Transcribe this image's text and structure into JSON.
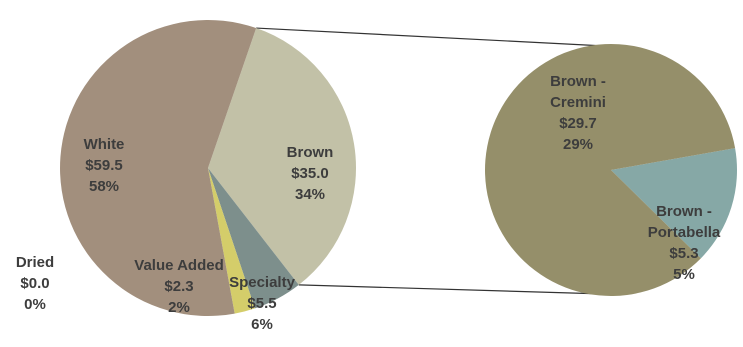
{
  "chart_data": [
    {
      "type": "pie",
      "title": "",
      "slices": [
        {
          "name": "White",
          "value_label": "$59.5",
          "percent_label": "58%",
          "value": 59.5,
          "color": "#a28f7d"
        },
        {
          "name": "Brown",
          "value_label": "$35.0",
          "percent_label": "34%",
          "value": 35.0,
          "color": "#c2c1a7"
        },
        {
          "name": "Specialty",
          "value_label": "$5.5",
          "percent_label": "6%",
          "value": 5.5,
          "color": "#7d8f8c"
        },
        {
          "name": "Value Added",
          "value_label": "$2.3",
          "percent_label": "2%",
          "value": 2.3,
          "color": "#d4cd6a"
        },
        {
          "name": "Dried",
          "value_label": "$0.0",
          "percent_label": "0%",
          "value": 0.0,
          "color": "#8a6f5a"
        }
      ]
    },
    {
      "type": "pie",
      "title": "",
      "slices": [
        {
          "name": "Brown - Cremini",
          "value_label": "$29.7",
          "percent_label": "29%",
          "value": 29.7,
          "color": "#958f6a"
        },
        {
          "name": "Brown - Portabella",
          "value_label": "$5.3",
          "percent_label": "5%",
          "value": 5.3,
          "color": "#86a8a6"
        }
      ]
    }
  ]
}
